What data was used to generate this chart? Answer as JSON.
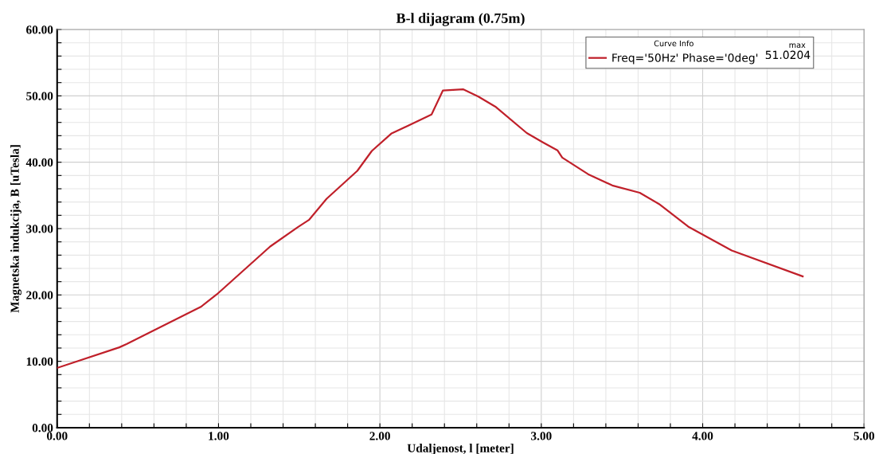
{
  "chart_data": {
    "type": "line",
    "title": "B-l dijagram (0.75m)",
    "xlabel": "Udaljenost, l [meter]",
    "ylabel": "Magnetska indukcija, B [uTesla]",
    "legend_title": "Curve Info",
    "annotations": [
      "max",
      "51.0204"
    ],
    "series": [
      {
        "name": "Freq='50Hz' Phase='0deg'",
        "color": "#c0202a",
        "x": [
          0,
          0.1,
          0.385,
          0.43,
          0.89,
          0.99,
          1.32,
          1.49,
          1.56,
          1.67,
          1.86,
          1.95,
          2.07,
          2.32,
          2.39,
          2.515,
          2.61,
          2.72,
          2.91,
          3.01,
          3.1,
          3.13,
          3.29,
          3.44,
          3.61,
          3.73,
          3.91,
          4.18,
          4.62
        ],
        "values": [
          9.0,
          9.8,
          12.1,
          12.6,
          18.2,
          20.1,
          27.3,
          30.2,
          31.3,
          34.5,
          38.7,
          41.7,
          44.3,
          47.2,
          50.8,
          51.0,
          49.9,
          48.3,
          44.4,
          43.0,
          41.8,
          40.7,
          38.2,
          36.5,
          35.4,
          33.7,
          30.3,
          26.7,
          22.8
        ]
      }
    ],
    "xlim": [
      0,
      5
    ],
    "ylim": [
      0,
      60
    ],
    "xticks": [
      {
        "value": 0,
        "label": "0.00"
      },
      {
        "value": 0.2,
        "label": null
      },
      {
        "value": 0.4,
        "label": null
      },
      {
        "value": 0.6,
        "label": null
      },
      {
        "value": 0.8,
        "label": null
      },
      {
        "value": 1,
        "label": "1.00"
      },
      {
        "value": 1.2,
        "label": null
      },
      {
        "value": 1.4,
        "label": null
      },
      {
        "value": 1.6,
        "label": null
      },
      {
        "value": 1.8,
        "label": null
      },
      {
        "value": 2,
        "label": "2.00"
      },
      {
        "value": 2.2,
        "label": null
      },
      {
        "value": 2.4,
        "label": null
      },
      {
        "value": 2.6,
        "label": null
      },
      {
        "value": 2.8,
        "label": null
      },
      {
        "value": 3,
        "label": "3.00"
      },
      {
        "value": 3.2,
        "label": null
      },
      {
        "value": 3.4,
        "label": null
      },
      {
        "value": 3.6,
        "label": null
      },
      {
        "value": 3.8,
        "label": null
      },
      {
        "value": 4,
        "label": "4.00"
      },
      {
        "value": 4.2,
        "label": null
      },
      {
        "value": 4.4,
        "label": null
      },
      {
        "value": 4.6,
        "label": null
      },
      {
        "value": 4.8,
        "label": null
      },
      {
        "value": 5,
        "label": "5.00"
      }
    ],
    "yticks": [
      {
        "value": 0,
        "label": "0.00"
      },
      {
        "value": 2,
        "label": null
      },
      {
        "value": 4,
        "label": null
      },
      {
        "value": 6,
        "label": null
      },
      {
        "value": 8,
        "label": null
      },
      {
        "value": 10,
        "label": "10.00"
      },
      {
        "value": 12,
        "label": null
      },
      {
        "value": 14,
        "label": null
      },
      {
        "value": 16,
        "label": null
      },
      {
        "value": 18,
        "label": null
      },
      {
        "value": 20,
        "label": "20.00"
      },
      {
        "value": 22,
        "label": null
      },
      {
        "value": 24,
        "label": null
      },
      {
        "value": 26,
        "label": null
      },
      {
        "value": 28,
        "label": null
      },
      {
        "value": 30,
        "label": "30.00"
      },
      {
        "value": 32,
        "label": null
      },
      {
        "value": 34,
        "label": null
      },
      {
        "value": 36,
        "label": null
      },
      {
        "value": 38,
        "label": null
      },
      {
        "value": 40,
        "label": "40.00"
      },
      {
        "value": 42,
        "label": null
      },
      {
        "value": 44,
        "label": null
      },
      {
        "value": 46,
        "label": null
      },
      {
        "value": 48,
        "label": null
      },
      {
        "value": 50,
        "label": "50.00"
      },
      {
        "value": 52,
        "label": null
      },
      {
        "value": 54,
        "label": null
      },
      {
        "value": 56,
        "label": null
      },
      {
        "value": 58,
        "label": null
      },
      {
        "value": 60,
        "label": "60.00"
      }
    ],
    "grid": true,
    "legend": "top right",
    "marker": "none",
    "line_style": "solid"
  }
}
